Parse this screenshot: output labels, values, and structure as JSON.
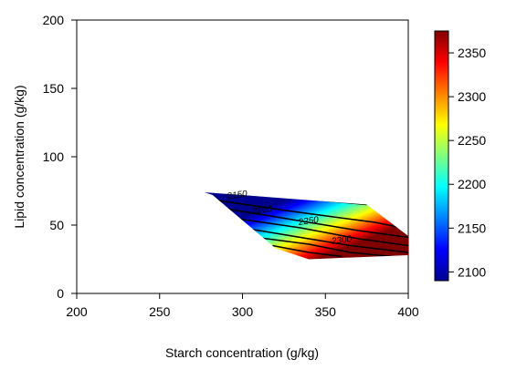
{
  "chart_data": {
    "type": "heatmap",
    "title": "",
    "xlabel": "Starch concentration (g/kg)",
    "ylabel": "Lipid concentration (g/kg)",
    "xlim": [
      200,
      400
    ],
    "ylim": [
      0,
      200
    ],
    "x_ticks": [
      "200",
      "250",
      "300",
      "350",
      "400"
    ],
    "y_ticks": [
      "0",
      "50",
      "100",
      "150",
      "200"
    ],
    "colorbar": {
      "range": [
        2090,
        2375
      ],
      "ticks": [
        "2100",
        "2150",
        "2200",
        "2250",
        "2300",
        "2350"
      ]
    },
    "region": [
      [
        277,
        74
      ],
      [
        375,
        65
      ],
      [
        400,
        42
      ],
      [
        400,
        28
      ],
      [
        340,
        25
      ],
      [
        320,
        33
      ],
      [
        282,
        72
      ]
    ],
    "contours": [
      {
        "level": "2100",
        "points": [
          [
            290,
            73
          ],
          [
            330,
            70
          ],
          [
            375,
            65
          ]
        ]
      },
      {
        "level": "2150",
        "points": [
          [
            285,
            68
          ],
          [
            330,
            60
          ],
          [
            380,
            52
          ],
          [
            400,
            47
          ]
        ]
      },
      {
        "level": "2200",
        "points": [
          [
            290,
            62
          ],
          [
            330,
            54
          ],
          [
            370,
            46
          ],
          [
            400,
            41
          ]
        ]
      },
      {
        "level": "2250",
        "points": [
          [
            295,
            55
          ],
          [
            335,
            48
          ],
          [
            370,
            40
          ],
          [
            400,
            35
          ]
        ]
      },
      {
        "level": "2300",
        "points": [
          [
            300,
            48
          ],
          [
            335,
            41
          ],
          [
            365,
            35
          ],
          [
            400,
            30
          ]
        ]
      },
      {
        "level": "",
        "points": [
          [
            302,
            42
          ],
          [
            340,
            36
          ],
          [
            365,
            30
          ],
          [
            390,
            27
          ]
        ]
      },
      {
        "level": "",
        "points": [
          [
            318,
            35
          ],
          [
            340,
            30
          ],
          [
            360,
            27
          ]
        ]
      }
    ],
    "contour_labels": [
      {
        "text": "2150",
        "x": 297,
        "y": 70
      },
      {
        "text": "2200",
        "x": 312,
        "y": 59
      },
      {
        "text": "2250",
        "x": 340,
        "y": 51
      },
      {
        "text": "2300",
        "x": 360,
        "y": 37
      }
    ],
    "gradient": {
      "from": [
        330,
        70
      ],
      "to": [
        345,
        25
      ],
      "min_value": 2090,
      "max_value": 2375
    },
    "colors": [
      "#00008f",
      "#0000ff",
      "#0080ff",
      "#00ffff",
      "#80ff80",
      "#ffff00",
      "#ff8000",
      "#ff0000",
      "#800000"
    ],
    "grid": false,
    "legend": "colorbar-right"
  }
}
